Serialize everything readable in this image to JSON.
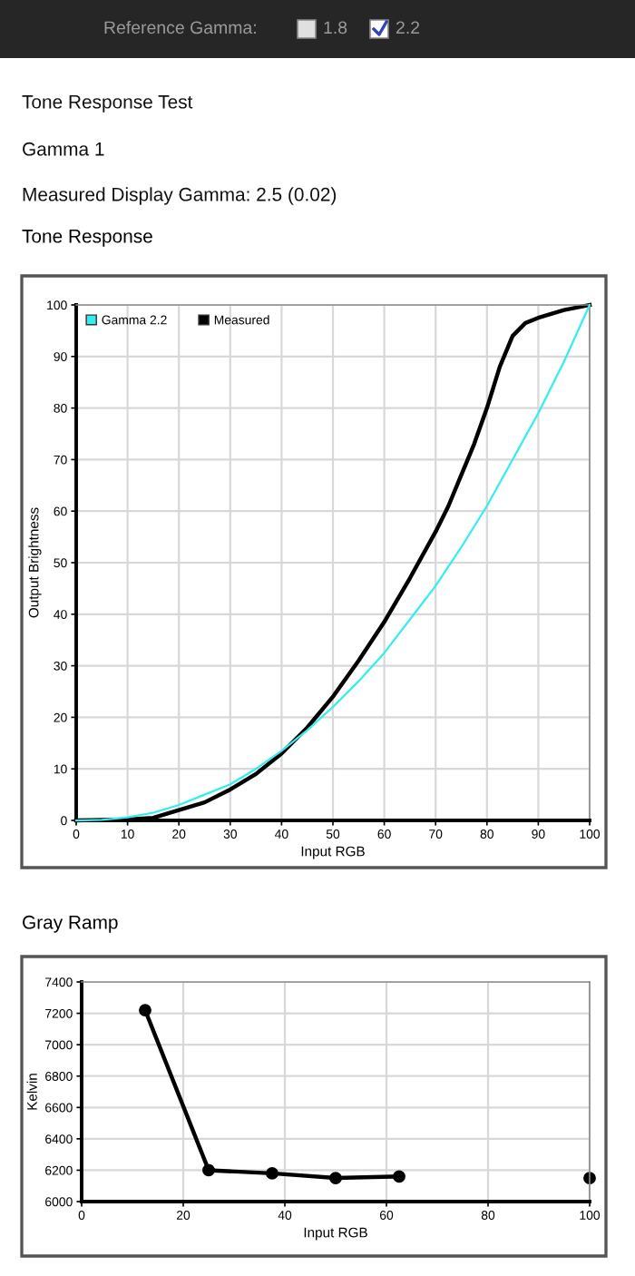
{
  "chart_data": [
    {
      "type": "line",
      "title": "Tone Response",
      "xlabel": "Input RGB",
      "ylabel": "Output Brightness",
      "annotations": [
        "Reference Gamma:",
        "1.8",
        "2.2",
        "Tone Response Test",
        "Gamma 1",
        "Measured Display Gamma: 2.5 (0.02)"
      ],
      "series": [
        {
          "name": "Gamma 2.2",
          "color": "#33eeee",
          "x": [
            0,
            5,
            10,
            15,
            20,
            25,
            30,
            35,
            40,
            45,
            50,
            55,
            60,
            65,
            70,
            75,
            80,
            85,
            90,
            95,
            100
          ],
          "values": [
            0,
            0.1,
            0.6,
            1.5,
            3,
            5,
            7,
            10,
            13.5,
            17.5,
            22,
            27,
            32.5,
            39,
            45.5,
            53,
            61,
            70,
            79,
            89,
            100
          ]
        },
        {
          "name": "Measured",
          "color": "#000000",
          "x": [
            0,
            10,
            15,
            20,
            25,
            30,
            35,
            40,
            45,
            50,
            55,
            60,
            65,
            70,
            72.5,
            75,
            77.5,
            80,
            82.5,
            85,
            87.5,
            90,
            95,
            100
          ],
          "values": [
            0,
            0.2,
            0.5,
            2,
            3.5,
            6,
            9,
            13,
            18,
            24,
            31,
            38.5,
            47,
            56,
            61,
            67,
            73,
            80,
            88,
            94,
            96.5,
            97.5,
            99,
            100
          ]
        }
      ],
      "xlim": [
        0,
        100
      ],
      "xticks": [
        0,
        10,
        20,
        30,
        40,
        50,
        60,
        70,
        80,
        90,
        100
      ],
      "ylim": [
        0,
        100
      ],
      "yticks": [
        0,
        10,
        20,
        30,
        40,
        50,
        60,
        70,
        80,
        90,
        100
      ],
      "grid": true,
      "legend": "top left",
      "marker": "none",
      "line_style": "solid"
    },
    {
      "type": "line",
      "title": "Gray Ramp",
      "xlabel": "Input RGB",
      "ylabel": "Kelvin",
      "x": [
        12.5,
        25,
        37.5,
        50,
        62.5,
        75,
        87.5,
        100
      ],
      "series": [
        {
          "color": "#000000",
          "values": [
            7220,
            6200,
            6180,
            6150,
            6160,
            null,
            null,
            6150
          ]
        }
      ],
      "xlim": [
        0,
        100
      ],
      "xticks": [
        0,
        20,
        40,
        60,
        80,
        100
      ],
      "ylim": [
        6000,
        7400
      ],
      "yticks": [
        6000,
        6200,
        6400,
        6600,
        6800,
        7000,
        7200,
        7400
      ],
      "grid": true,
      "marker": "circle",
      "line_style": "solid"
    }
  ]
}
